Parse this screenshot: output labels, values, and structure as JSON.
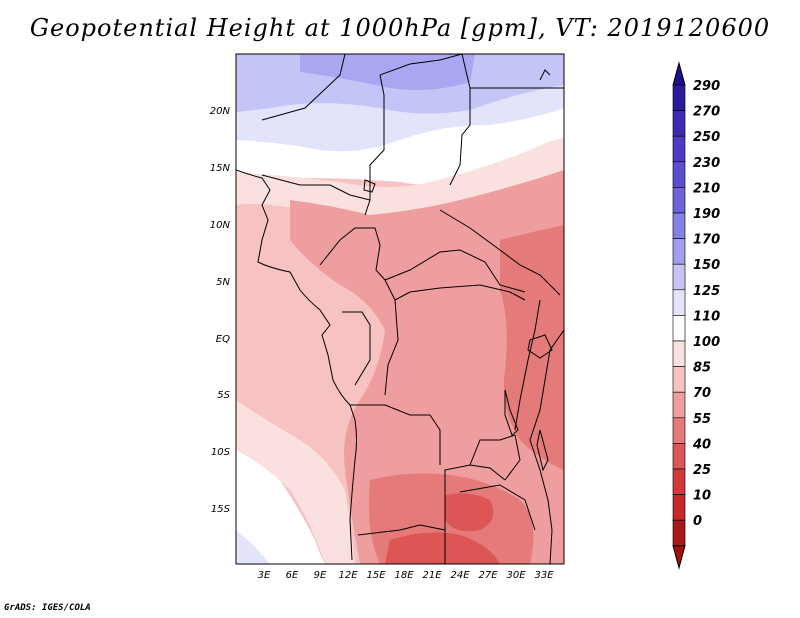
{
  "title": "Geopotential Height at 1000hPa [gpm], VT: 2019120600",
  "footer": "GrADS: IGES/COLA",
  "map": {
    "lat_labels": [
      "20N",
      "15N",
      "10N",
      "5N",
      "EQ",
      "5S",
      "10S",
      "15S"
    ],
    "lon_labels": [
      "3E",
      "6E",
      "9E",
      "12E",
      "15E",
      "18E",
      "21E",
      "24E",
      "27E",
      "30E",
      "33E"
    ]
  },
  "colorbar": {
    "levels": [
      "290",
      "270",
      "250",
      "230",
      "210",
      "190",
      "170",
      "150",
      "125",
      "110",
      "100",
      "85",
      "70",
      "55",
      "40",
      "25",
      "10",
      "0"
    ],
    "colors": [
      "#2a1aa0",
      "#3a2ab4",
      "#4a3cc4",
      "#5a4fd0",
      "#6d64dc",
      "#8580e6",
      "#a19ef0",
      "#c4c4f6",
      "#e2e4fb",
      "#fdfdfd",
      "#fbe0e0",
      "#f6c2c2",
      "#ee9e9e",
      "#e57a7a",
      "#dc5656",
      "#d23a3a",
      "#c42828",
      "#a81818"
    ],
    "top_arrow_color": "#1a1090",
    "bottom_arrow_color": "#a01010"
  },
  "fill_colors": {
    "blue_dark": "#aaa6f2",
    "blue_mid": "#c4c4f6",
    "blue_light": "#e2e4fb",
    "white": "#ffffff",
    "pink_light": "#fbe0e0",
    "pink": "#f6c2c2",
    "salmon": "#ee9e9e",
    "red": "#e57a7a",
    "red_dark": "#dc5656"
  }
}
